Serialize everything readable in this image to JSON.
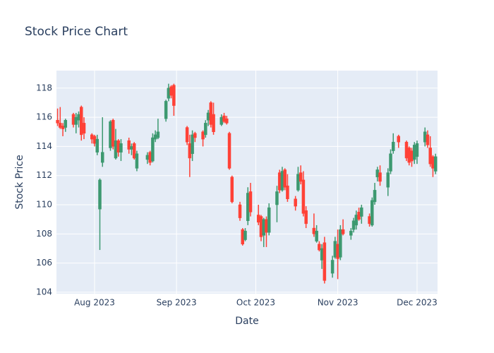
{
  "chart_data": {
    "type": "candlestick",
    "title": "Stock Price Chart",
    "x_label": "Date",
    "y_label": "Stock Price",
    "x": [
      "2023-07-18",
      "2023-07-19",
      "2023-07-20",
      "2023-07-21",
      "2023-07-24",
      "2023-07-25",
      "2023-07-26",
      "2023-07-27",
      "2023-07-28",
      "2023-07-31",
      "2023-08-01",
      "2023-08-02",
      "2023-08-03",
      "2023-08-04",
      "2023-08-07",
      "2023-08-08",
      "2023-08-09",
      "2023-08-10",
      "2023-08-11",
      "2023-08-14",
      "2023-08-15",
      "2023-08-16",
      "2023-08-17",
      "2023-08-21",
      "2023-08-22",
      "2023-08-23",
      "2023-08-24",
      "2023-08-25",
      "2023-08-28",
      "2023-08-29",
      "2023-08-30",
      "2023-08-31",
      "2023-09-05",
      "2023-09-06",
      "2023-09-07",
      "2023-09-08",
      "2023-09-11",
      "2023-09-12",
      "2023-09-13",
      "2023-09-14",
      "2023-09-15",
      "2023-09-18",
      "2023-09-19",
      "2023-09-20",
      "2023-09-21",
      "2023-09-22",
      "2023-09-25",
      "2023-09-26",
      "2023-09-27",
      "2023-09-28",
      "2023-09-29",
      "2023-10-02",
      "2023-10-03",
      "2023-10-04",
      "2023-10-05",
      "2023-10-06",
      "2023-10-09",
      "2023-10-10",
      "2023-10-11",
      "2023-10-12",
      "2023-10-13",
      "2023-10-16",
      "2023-10-17",
      "2023-10-18",
      "2023-10-19",
      "2023-10-20",
      "2023-10-23",
      "2023-10-24",
      "2023-10-25",
      "2023-10-26",
      "2023-10-27",
      "2023-10-30",
      "2023-10-31",
      "2023-11-01",
      "2023-11-02",
      "2023-11-03",
      "2023-11-06",
      "2023-11-07",
      "2023-11-08",
      "2023-11-09",
      "2023-11-10",
      "2023-11-13",
      "2023-11-14",
      "2023-11-15",
      "2023-11-16",
      "2023-11-17",
      "2023-11-20",
      "2023-11-21",
      "2023-11-22",
      "2023-11-24",
      "2023-11-27",
      "2023-11-28",
      "2023-11-29",
      "2023-11-30",
      "2023-12-01",
      "2023-12-04",
      "2023-12-05",
      "2023-12-06",
      "2023-12-07",
      "2023-12-08"
    ],
    "open": [
      115.8,
      115.6,
      115.4,
      115.3,
      116.2,
      115.5,
      115.8,
      116.7,
      115.6,
      114.8,
      114.7,
      113.6,
      109.7,
      112.9,
      113.9,
      115.8,
      113.2,
      114.4,
      113.6,
      114.4,
      113.8,
      114.2,
      112.5,
      113.1,
      113.6,
      113.0,
      114.5,
      114.6,
      115.9,
      117.3,
      118.1,
      118.2,
      115.3,
      114.2,
      113.5,
      114.9,
      115.0,
      114.8,
      115.8,
      117.0,
      116.2,
      115.5,
      116.1,
      115.9,
      114.9,
      111.9,
      110.0,
      108.3,
      107.6,
      108.9,
      110.9,
      109.3,
      109.2,
      107.9,
      109.0,
      108.1,
      110.0,
      112.2,
      111.0,
      112.4,
      111.3,
      110.4,
      111.0,
      112.2,
      111.7,
      109.6,
      108.4,
      107.5,
      107.3,
      106.2,
      107.4,
      105.3,
      106.4,
      107.3,
      106.4,
      108.3,
      107.9,
      108.3,
      108.6,
      109.5,
      109.2,
      109.2,
      108.6,
      110.2,
      111.9,
      112.2,
      111.2,
      112.3,
      113.7,
      114.7,
      114.3,
      113.9,
      113.7,
      113.1,
      113.3,
      114.3,
      114.8,
      113.9,
      113.3,
      112.3
    ],
    "high": [
      116.6,
      116.7,
      115.6,
      115.9,
      116.3,
      116.3,
      116.4,
      116.8,
      116.0,
      114.9,
      114.8,
      114.8,
      111.8,
      116.0,
      115.8,
      115.9,
      115.2,
      114.5,
      114.5,
      114.6,
      114.2,
      114.3,
      113.7,
      113.6,
      113.7,
      114.9,
      115.1,
      115.9,
      117.2,
      118.3,
      118.2,
      118.3,
      115.4,
      114.8,
      115.1,
      115.0,
      115.1,
      115.8,
      116.5,
      117.1,
      117.0,
      116.2,
      116.3,
      116.1,
      115.0,
      112.0,
      110.2,
      108.4,
      108.4,
      111.2,
      111.5,
      110.0,
      109.3,
      109.1,
      109.2,
      110.1,
      111.3,
      112.4,
      112.6,
      112.5,
      112.1,
      110.6,
      112.6,
      112.7,
      112.3,
      109.9,
      109.4,
      108.6,
      107.5,
      107.3,
      107.8,
      106.5,
      107.8,
      108.3,
      108.6,
      109.0,
      108.4,
      109.1,
      109.6,
      109.8,
      110.0,
      109.4,
      110.5,
      111.5,
      112.6,
      112.7,
      112.5,
      113.8,
      114.9,
      114.8,
      114.4,
      114.0,
      113.9,
      114.3,
      114.4,
      115.3,
      115.1,
      114.7,
      113.4,
      113.5
    ],
    "low": [
      115.4,
      115.2,
      114.7,
      115.0,
      115.3,
      114.9,
      115.3,
      114.4,
      114.5,
      114.2,
      114.0,
      113.4,
      106.9,
      112.6,
      113.7,
      113.8,
      113.1,
      113.3,
      113.0,
      113.5,
      113.4,
      113.1,
      112.3,
      112.8,
      112.7,
      112.9,
      114.3,
      114.5,
      115.7,
      117.1,
      117.3,
      116.1,
      114.1,
      111.9,
      113.0,
      114.3,
      114.0,
      114.6,
      115.4,
      115.3,
      114.8,
      115.4,
      115.6,
      115.5,
      112.4,
      110.1,
      108.9,
      107.2,
      107.5,
      108.6,
      109.2,
      108.6,
      107.5,
      107.1,
      107.1,
      107.9,
      108.8,
      110.8,
      110.9,
      111.0,
      110.2,
      109.6,
      110.9,
      111.4,
      109.2,
      108.4,
      107.8,
      107.4,
      106.8,
      105.6,
      104.6,
      105.0,
      106.3,
      104.9,
      106.2,
      107.9,
      107.6,
      108.1,
      108.3,
      108.9,
      108.7,
      108.5,
      108.5,
      110.0,
      111.6,
      111.3,
      110.6,
      112.1,
      113.5,
      113.9,
      113.0,
      112.7,
      112.6,
      112.8,
      112.8,
      114.0,
      113.9,
      112.6,
      111.9,
      112.1
    ],
    "close": [
      115.6,
      115.3,
      115.2,
      115.8,
      115.5,
      116.0,
      116.2,
      114.8,
      114.9,
      114.5,
      114.2,
      114.5,
      111.7,
      113.6,
      115.7,
      114.0,
      114.4,
      113.6,
      114.2,
      113.8,
      114.0,
      113.2,
      113.5,
      113.4,
      112.9,
      114.6,
      114.8,
      115.0,
      117.1,
      118.0,
      117.5,
      116.8,
      114.3,
      113.2,
      114.8,
      114.6,
      114.5,
      115.6,
      116.3,
      115.5,
      115.0,
      116.0,
      115.7,
      115.6,
      112.5,
      110.2,
      109.1,
      107.3,
      108.2,
      110.8,
      109.5,
      108.8,
      107.8,
      109.0,
      108.1,
      109.8,
      110.9,
      111.0,
      112.3,
      111.2,
      110.4,
      109.9,
      112.1,
      111.6,
      109.4,
      108.7,
      108.0,
      108.2,
      106.9,
      107.0,
      104.8,
      106.2,
      107.5,
      106.3,
      108.3,
      108.0,
      108.2,
      108.9,
      109.3,
      109.0,
      109.8,
      108.7,
      110.3,
      111.0,
      112.4,
      111.6,
      112.2,
      113.5,
      114.3,
      114.3,
      113.2,
      112.9,
      113.0,
      114.1,
      114.2,
      115.0,
      114.1,
      112.8,
      112.5,
      113.3
    ],
    "increasing_color": "#3D9970",
    "decreasing_color": "#FF4136",
    "xlim": [
      "2023-07-17T14:00:00Z",
      "2023-12-08T18:00:00Z"
    ],
    "xticks": [
      {
        "value": "2023-08-01",
        "label": "Aug 2023"
      },
      {
        "value": "2023-09-01",
        "label": "Sep 2023"
      },
      {
        "value": "2023-10-01",
        "label": "Oct 2023"
      },
      {
        "value": "2023-11-01",
        "label": "Nov 2023"
      },
      {
        "value": "2023-12-01",
        "label": "Dec 2023"
      }
    ],
    "ylim": [
      103.9,
      119.2
    ],
    "yticks": [
      104,
      106,
      108,
      110,
      112,
      114,
      116,
      118
    ],
    "grid": true
  }
}
